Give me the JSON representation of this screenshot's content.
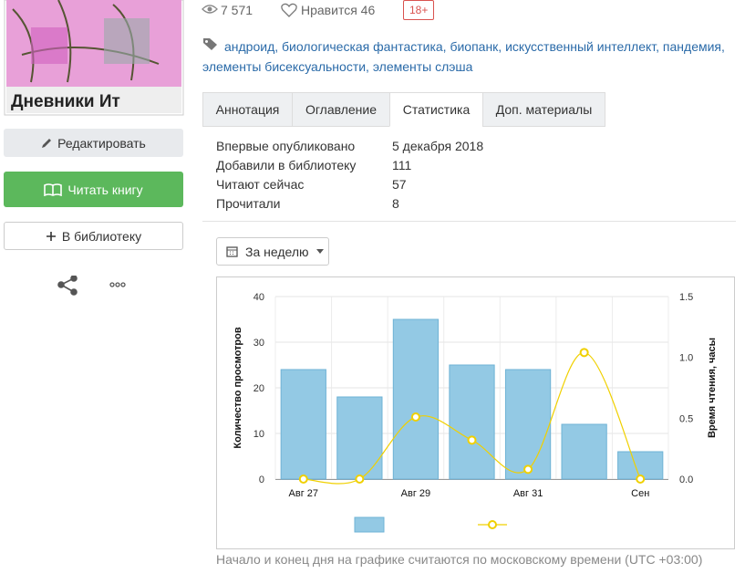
{
  "cover_text": "Дневники Ит",
  "buttons": [
    "Редактировать",
    "Читать книгу",
    "В библиотеку"
  ],
  "stats_bar": {
    "views": "7 571",
    "likes": "Нравится 46",
    "age": "18+"
  },
  "tags": "андроид, биологическая фантастика, биопанк, искусственный интеллект, пандемия, элементы бисексуальности, элементы слэша",
  "tabs": [
    "Аннотация",
    "Оглавление",
    "Статистика",
    "Доп. материалы"
  ],
  "active_tab": 2,
  "stats": [
    [
      "Впервые опубликовано",
      "5 декабря 2018"
    ],
    [
      "Добавили в библиотеку",
      "111"
    ],
    [
      "Читают сейчас",
      "57"
    ],
    [
      "Прочитали",
      "8"
    ]
  ],
  "period": "За неделю",
  "chart_data": {
    "type": "bar",
    "y_label": "Количество просмотров",
    "y2_label": "Время чтения, часы",
    "categories": [
      "Авг 27",
      null,
      "Авг 29",
      null,
      "Авг 31",
      null,
      "Сен"
    ],
    "series": [
      {
        "type": "bar",
        "color": "#93c9e4",
        "values": [
          24,
          18,
          35,
          25,
          24,
          12,
          6
        ]
      },
      {
        "type": "line",
        "axis": "y2",
        "color": "#f0d000",
        "values": [
          0,
          0,
          0.51,
          0.32,
          0.08,
          1.04,
          0
        ]
      }
    ],
    "ylim": [
      0,
      40
    ],
    "yticks": [
      0,
      10,
      20,
      30,
      40
    ],
    "y2lim": [
      0,
      1.5
    ],
    "y2ticks": [
      {
        "value": 0,
        "label": "0.0"
      },
      0.5,
      {
        "value": 1,
        "label": "1.0"
      },
      1.5
    ],
    "grid": true
  },
  "footnote": "Начало и конец дня на графике считаются по московскому времени (UTC +03:00)"
}
